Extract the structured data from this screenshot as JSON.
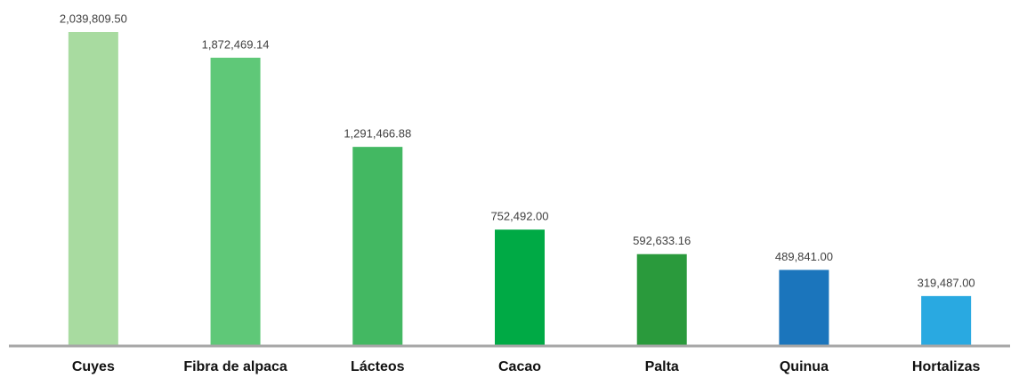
{
  "chart_data": {
    "type": "bar",
    "categories": [
      "Cuyes",
      "Fibra de alpaca",
      "Lácteos",
      "Cacao",
      "Palta",
      "Quinua",
      "Hortalizas"
    ],
    "values": [
      2039809.5,
      1872469.14,
      1291466.88,
      752492,
      592633.16,
      489841,
      319487
    ],
    "value_labels": [
      "2,039,809.50",
      "1,872,469.14",
      "1,291,466.88",
      "752,492.00",
      "592,633.16",
      "489,841.00",
      "319,487.00"
    ],
    "colors": [
      "#a8dba0",
      "#5fc878",
      "#43b862",
      "#00aa45",
      "#2a9a3c",
      "#1b75bc",
      "#29a9e1"
    ]
  }
}
